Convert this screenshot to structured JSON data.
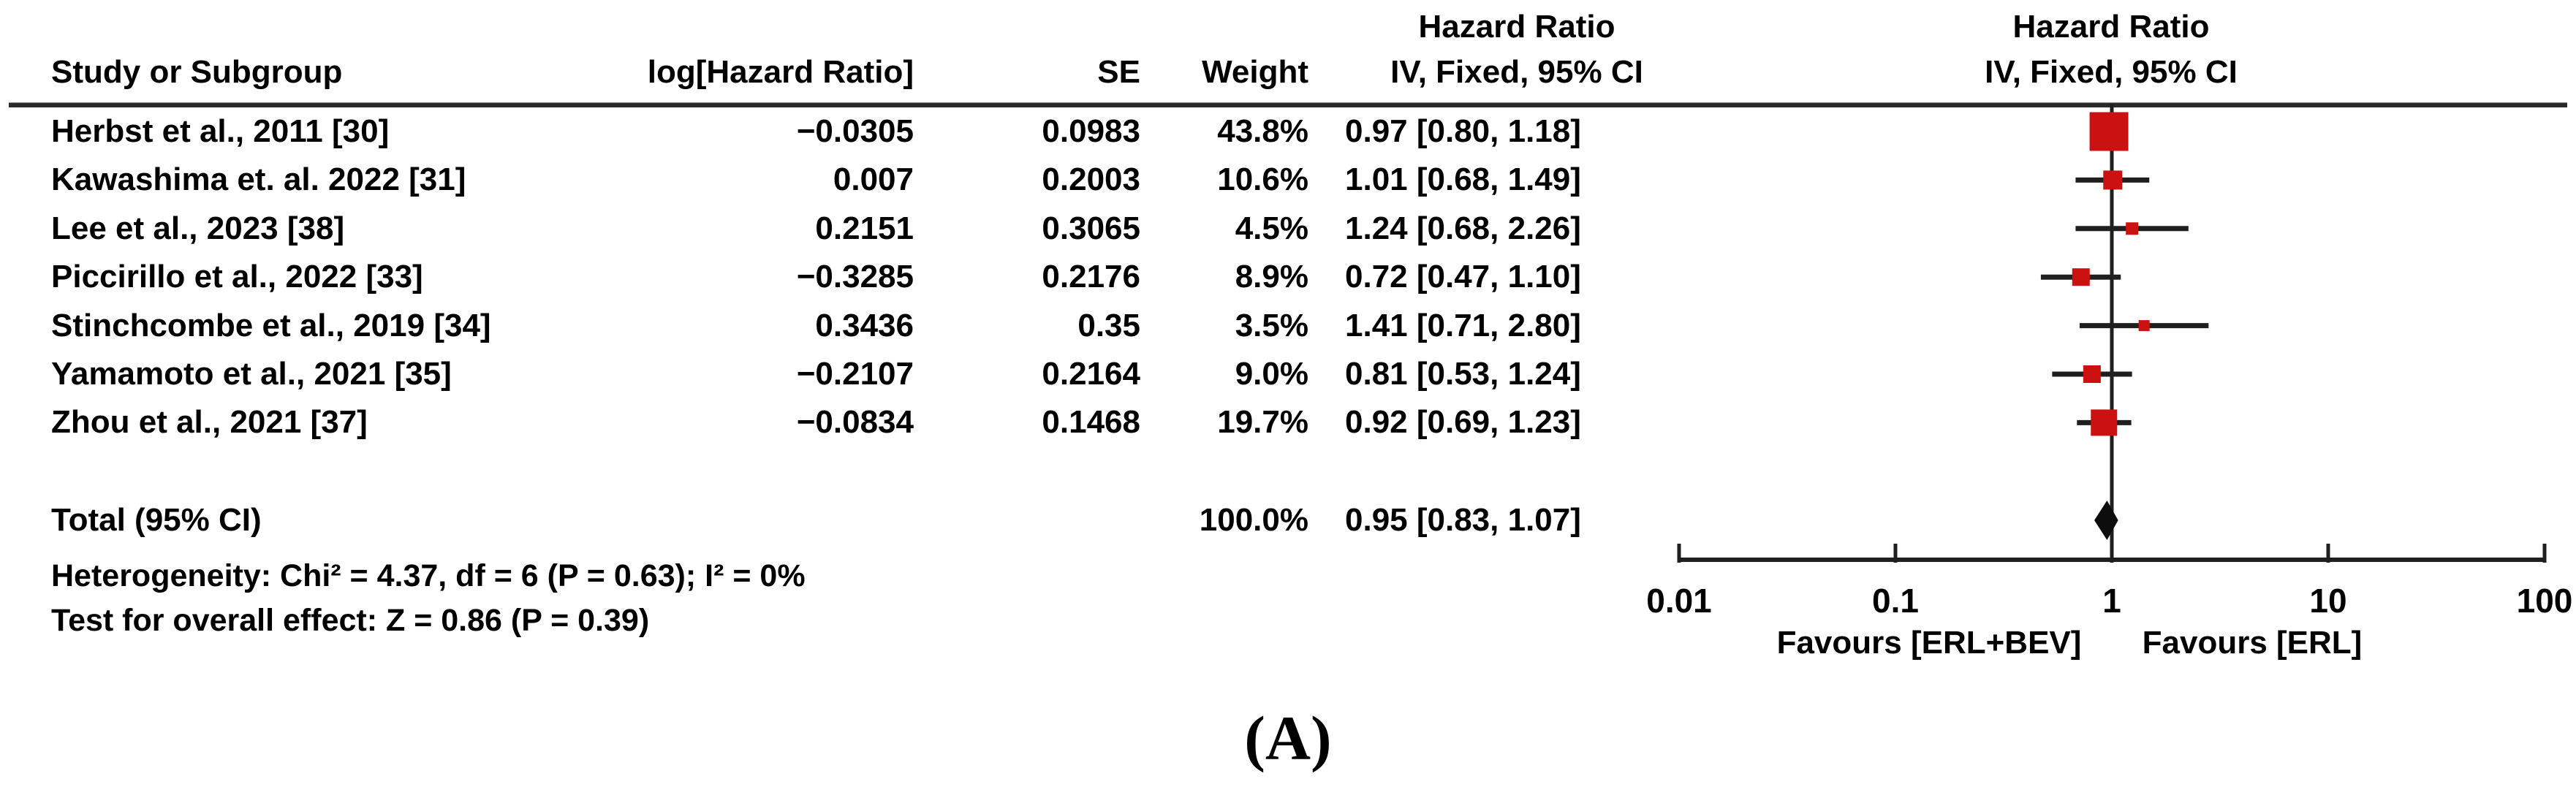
{
  "figure": {
    "caption": "(A)"
  },
  "header": {
    "study": "Study or Subgroup",
    "log_hr": "log[Hazard Ratio]",
    "se": "SE",
    "weight": "Weight",
    "hr_col_line1": "Hazard Ratio",
    "hr_col_line2": "IV, Fixed, 95% CI",
    "plot_col_line1": "Hazard Ratio",
    "plot_col_line2": "IV, Fixed, 95% CI"
  },
  "rows": [
    {
      "study": "Herbst et al., 2011 [30]",
      "log_hr": "−0.0305",
      "se": "0.0983",
      "weight": "43.8%",
      "ci": "0.97 [0.80, 1.18]"
    },
    {
      "study": "Kawashima et. al. 2022 [31]",
      "log_hr": "0.007",
      "se": "0.2003",
      "weight": "10.6%",
      "ci": "1.01 [0.68, 1.49]"
    },
    {
      "study": "Lee et al., 2023 [38]",
      "log_hr": "0.2151",
      "se": "0.3065",
      "weight": "4.5%",
      "ci": "1.24 [0.68, 2.26]"
    },
    {
      "study": "Piccirillo et al., 2022 [33]",
      "log_hr": "−0.3285",
      "se": "0.2176",
      "weight": "8.9%",
      "ci": "0.72 [0.47, 1.10]"
    },
    {
      "study": "Stinchcombe et al., 2019 [34]",
      "log_hr": "0.3436",
      "se": "0.35",
      "weight": "3.5%",
      "ci": "1.41 [0.71, 2.80]"
    },
    {
      "study": "Yamamoto et al., 2021 [35]",
      "log_hr": "−0.2107",
      "se": "0.2164",
      "weight": "9.0%",
      "ci": "0.81 [0.53, 1.24]"
    },
    {
      "study": "Zhou et al., 2021 [37]",
      "log_hr": "−0.0834",
      "se": "0.1468",
      "weight": "19.7%",
      "ci": "0.92 [0.69, 1.23]"
    }
  ],
  "total_row": {
    "label": "Total (95% CI)",
    "weight": "100.0%",
    "ci": "0.95 [0.83, 1.07]"
  },
  "stats": {
    "heterogeneity": "Heterogeneity: Chi² = 4.37, df = 6 (P = 0.63); I² = 0%",
    "overall_effect": "Test for overall effect: Z = 0.86 (P = 0.39)"
  },
  "chart_data": {
    "type": "forest",
    "x_scale": "log10",
    "xlim": [
      0.01,
      100
    ],
    "x_ticks": [
      0.01,
      0.1,
      1,
      10,
      100
    ],
    "null_line": 1,
    "marker_color": "#cc1111",
    "diamond_color": "#0d0d0d",
    "line_color": "#1f1f1f",
    "favours_left": "Favours [ERL+BEV]",
    "favours_right": "Favours [ERL]",
    "studies": [
      {
        "name": "Herbst et al., 2011 [30]",
        "log_hr": -0.0305,
        "se": 0.0983,
        "weight_pct": 43.8,
        "hr": 0.97,
        "ci_low": 0.8,
        "ci_high": 1.18
      },
      {
        "name": "Kawashima et. al. 2022 [31]",
        "log_hr": 0.007,
        "se": 0.2003,
        "weight_pct": 10.6,
        "hr": 1.01,
        "ci_low": 0.68,
        "ci_high": 1.49
      },
      {
        "name": "Lee et al., 2023 [38]",
        "log_hr": 0.2151,
        "se": 0.3065,
        "weight_pct": 4.5,
        "hr": 1.24,
        "ci_low": 0.68,
        "ci_high": 2.26
      },
      {
        "name": "Piccirillo et al., 2022 [33]",
        "log_hr": -0.3285,
        "se": 0.2176,
        "weight_pct": 8.9,
        "hr": 0.72,
        "ci_low": 0.47,
        "ci_high": 1.1
      },
      {
        "name": "Stinchcombe et al., 2019 [34]",
        "log_hr": 0.3436,
        "se": 0.35,
        "weight_pct": 3.5,
        "hr": 1.41,
        "ci_low": 0.71,
        "ci_high": 2.8
      },
      {
        "name": "Yamamoto et al., 2021 [35]",
        "log_hr": -0.2107,
        "se": 0.2164,
        "weight_pct": 9.0,
        "hr": 0.81,
        "ci_low": 0.53,
        "ci_high": 1.24
      },
      {
        "name": "Zhou et al., 2021 [37]",
        "log_hr": -0.0834,
        "se": 0.1468,
        "weight_pct": 19.7,
        "hr": 0.92,
        "ci_low": 0.69,
        "ci_high": 1.23
      }
    ],
    "total": {
      "label": "Total (95% CI)",
      "weight_pct": 100.0,
      "hr": 0.95,
      "ci_low": 0.83,
      "ci_high": 1.07
    }
  }
}
